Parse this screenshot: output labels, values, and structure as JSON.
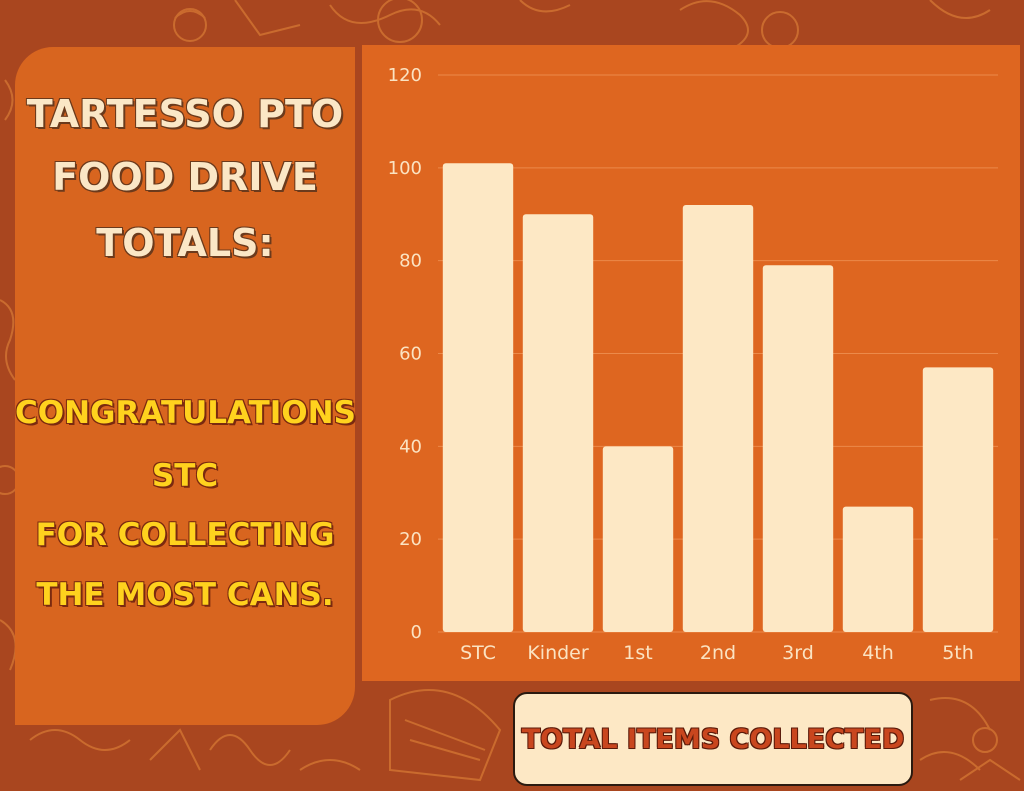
{
  "headline": {
    "lines": [
      "TARTESSO PTO",
      "FOOD DRIVE",
      "TOTALS:"
    ]
  },
  "congrats": {
    "lines": [
      "CONGRATULATIONS",
      "STC",
      "FOR COLLECTING",
      "THE MOST CANS."
    ]
  },
  "footer": {
    "label": "TOTAL ITEMS COLLECTED"
  },
  "colors": {
    "background": "#a9461f",
    "panel": "#d8651f",
    "chart_panel": "#de6620",
    "bar": "#fde8c5",
    "tick_text": "#fbe3c2",
    "headline_text": "#fbe7c6",
    "congrats_text": "#ffd21e"
  },
  "chart_data": {
    "type": "bar",
    "categories": [
      "STC",
      "Kinder",
      "1st",
      "2nd",
      "3rd",
      "4th",
      "5th"
    ],
    "values": [
      101,
      90,
      40,
      92,
      79,
      27,
      57
    ],
    "title": "",
    "xlabel": "",
    "ylabel": "",
    "ylim": [
      0,
      120
    ],
    "yticks": [
      0,
      20,
      40,
      60,
      80,
      100,
      120
    ],
    "grid": true,
    "legend": "none"
  }
}
